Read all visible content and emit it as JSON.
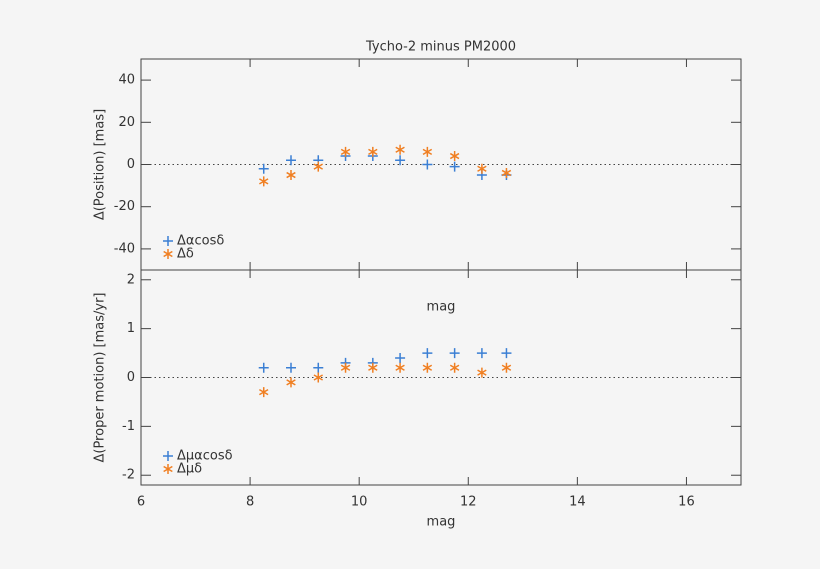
{
  "chart_data": [
    {
      "type": "scatter",
      "title": "Tycho-2 minus PM2000",
      "y_label": "Δ(Position) [mas]",
      "xlim": [
        6,
        17
      ],
      "xticks": [
        6,
        8,
        10,
        12,
        14,
        16
      ],
      "ylim": [
        -50,
        50
      ],
      "yticks": [
        -40,
        -20,
        0,
        20,
        40
      ],
      "reference_line": 0,
      "legend": "lower left",
      "series": [
        {
          "name": "Δαcosδ",
          "marker": "plus",
          "color": "#3b7fd4",
          "x": [
            8.25,
            8.75,
            9.25,
            9.75,
            10.25,
            10.75,
            11.25,
            11.75,
            12.25,
            12.7
          ],
          "values": [
            -2,
            2,
            2,
            4,
            4,
            2,
            0,
            -1,
            -5,
            -5
          ]
        },
        {
          "name": "Δδ",
          "marker": "star",
          "color": "#f07f22",
          "x": [
            8.25,
            8.75,
            9.25,
            9.75,
            10.25,
            10.75,
            11.25,
            11.75,
            12.25,
            12.7
          ],
          "values": [
            -8,
            -5,
            -1,
            6,
            6,
            7,
            6,
            4,
            -2,
            -4
          ]
        }
      ]
    },
    {
      "type": "scatter",
      "annotation": "mag",
      "x_label": "mag",
      "y_label": "Δ(Proper motion) [mas/yr]",
      "xlim": [
        6,
        17
      ],
      "xticks": [
        6,
        8,
        10,
        12,
        14,
        16
      ],
      "ylim": [
        -2.2,
        2.2
      ],
      "yticks": [
        -2,
        -1,
        0,
        1,
        2
      ],
      "reference_line": 0,
      "legend": "lower left",
      "series": [
        {
          "name": "Δμαcosδ",
          "marker": "plus",
          "color": "#3b7fd4",
          "x": [
            8.25,
            8.75,
            9.25,
            9.75,
            10.25,
            10.75,
            11.25,
            11.75,
            12.25,
            12.7
          ],
          "values": [
            0.2,
            0.2,
            0.2,
            0.3,
            0.3,
            0.4,
            0.5,
            0.5,
            0.5,
            0.5
          ]
        },
        {
          "name": "Δμδ",
          "marker": "star",
          "color": "#f07f22",
          "x": [
            8.25,
            8.75,
            9.25,
            9.75,
            10.25,
            10.75,
            11.25,
            11.75,
            12.25,
            12.7
          ],
          "values": [
            -0.3,
            -0.1,
            0,
            0.2,
            0.2,
            0.2,
            0.2,
            0.2,
            0.1,
            0.2
          ]
        }
      ]
    }
  ]
}
